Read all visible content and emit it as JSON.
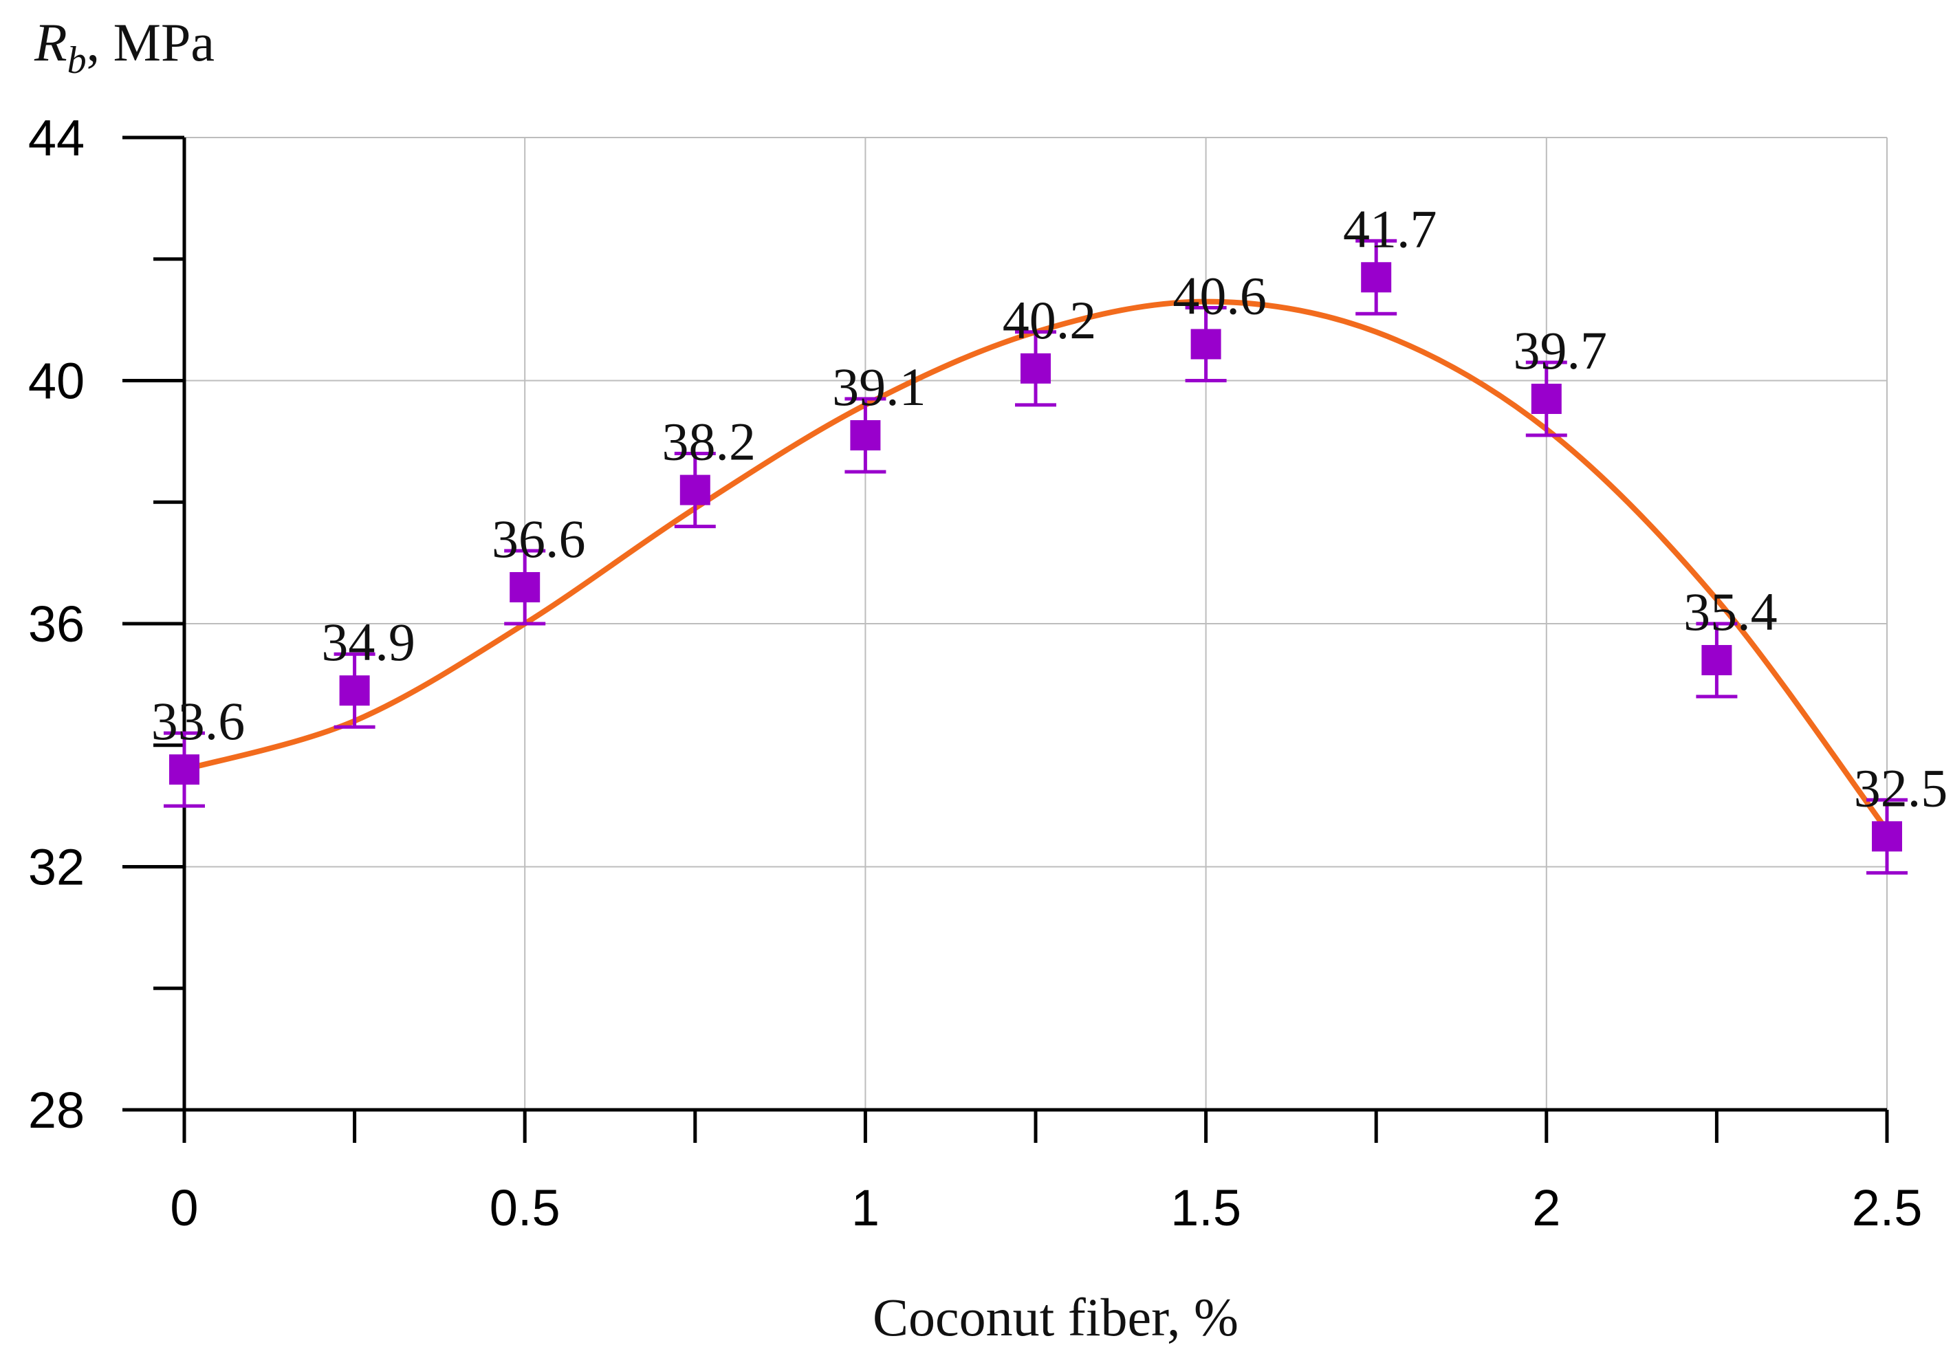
{
  "chart_data": {
    "type": "scatter",
    "title": "",
    "xlabel": "Coconut fiber, %",
    "ylabel": {
      "symbol": "R",
      "subscript": "b",
      "unit": ", MPa"
    },
    "xlim": [
      0,
      2.5
    ],
    "ylim": [
      28,
      44
    ],
    "x_ticks": [
      "0",
      "0.5",
      "1",
      "1.5",
      "2",
      "2.5"
    ],
    "y_ticks": [
      "28",
      "32",
      "36",
      "40",
      "44"
    ],
    "grid": true,
    "series": [
      {
        "name": "Rb",
        "marker": "square",
        "color": "#9900cc",
        "x": [
          0,
          0.25,
          0.5,
          0.75,
          1.0,
          1.25,
          1.5,
          1.75,
          2.0,
          2.25,
          2.5
        ],
        "values": [
          33.6,
          34.9,
          36.6,
          38.2,
          39.1,
          40.2,
          40.6,
          41.7,
          39.7,
          35.4,
          32.5
        ],
        "labels": [
          "33.6",
          "34.9",
          "36.6",
          "38.2",
          "39.1",
          "40.2",
          "40.6",
          "41.7",
          "39.7",
          "35.4",
          "32.5"
        ],
        "error": 0.6
      },
      {
        "name": "trend",
        "type": "line",
        "smooth": true,
        "color": "#f26b1d",
        "x": [
          0,
          0.25,
          0.5,
          0.75,
          1.0,
          1.25,
          1.5,
          1.75,
          2.0,
          2.25,
          2.5
        ],
        "values": [
          33.6,
          34.4,
          36.0,
          37.9,
          39.6,
          40.8,
          41.3,
          40.8,
          39.2,
          36.4,
          32.6
        ]
      }
    ]
  }
}
